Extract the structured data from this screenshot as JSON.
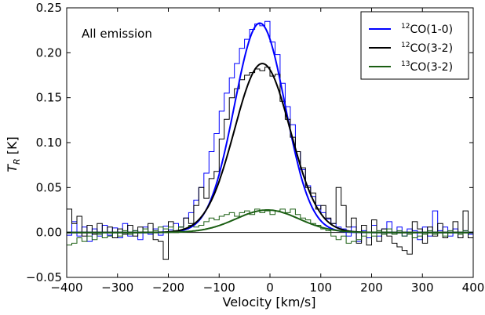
{
  "chart_data": {
    "type": "line",
    "annotation": "All emission",
    "xlabel": "Velocity [km/s]",
    "ylabel": "T_R [K]",
    "xlim": [
      -400,
      400
    ],
    "ylim": [
      -0.05,
      0.25
    ],
    "xticks": [
      -400,
      -300,
      -200,
      -100,
      0,
      100,
      200,
      300,
      400
    ],
    "xtick_labels": [
      "−400",
      "−300",
      "−200",
      "−100",
      "0",
      "100",
      "200",
      "300",
      "400"
    ],
    "yticks": [
      -0.05,
      0.0,
      0.05,
      0.1,
      0.15,
      0.2,
      0.25
    ],
    "ytick_labels": [
      "−0.05",
      "0.00",
      "0.05",
      "0.10",
      "0.15",
      "0.20",
      "0.25"
    ],
    "zero_line": 0.0,
    "grid": false,
    "legend_position": "top-right",
    "series": [
      {
        "name": "12CO(1-0)",
        "color": "#0000ff",
        "fit": {
          "amplitude": 0.233,
          "center": -20,
          "sigma": 50
        },
        "step_values": [
          {
            "x": -400,
            "y": -0.003
          },
          {
            "x": -390,
            "y": 0.012
          },
          {
            "x": -380,
            "y": -0.004
          },
          {
            "x": -370,
            "y": 0.006
          },
          {
            "x": -360,
            "y": -0.01
          },
          {
            "x": -350,
            "y": 0.004
          },
          {
            "x": -340,
            "y": -0.004
          },
          {
            "x": -330,
            "y": 0.008
          },
          {
            "x": -320,
            "y": -0.003
          },
          {
            "x": -310,
            "y": 0.005
          },
          {
            "x": -300,
            "y": -0.006
          },
          {
            "x": -290,
            "y": 0.01
          },
          {
            "x": -280,
            "y": -0.004
          },
          {
            "x": -270,
            "y": 0.002
          },
          {
            "x": -260,
            "y": -0.008
          },
          {
            "x": -250,
            "y": 0.006
          },
          {
            "x": -240,
            "y": -0.002
          },
          {
            "x": -230,
            "y": 0.004
          },
          {
            "x": -220,
            "y": -0.003
          },
          {
            "x": -210,
            "y": 0.007
          },
          {
            "x": -200,
            "y": 0.003
          },
          {
            "x": -190,
            "y": 0.01
          },
          {
            "x": -180,
            "y": 0.006
          },
          {
            "x": -170,
            "y": 0.016
          },
          {
            "x": -160,
            "y": 0.022
          },
          {
            "x": -150,
            "y": 0.036
          },
          {
            "x": -140,
            "y": 0.05
          },
          {
            "x": -130,
            "y": 0.066
          },
          {
            "x": -120,
            "y": 0.09
          },
          {
            "x": -110,
            "y": 0.11
          },
          {
            "x": -100,
            "y": 0.135
          },
          {
            "x": -90,
            "y": 0.155
          },
          {
            "x": -80,
            "y": 0.172
          },
          {
            "x": -70,
            "y": 0.188
          },
          {
            "x": -60,
            "y": 0.205
          },
          {
            "x": -50,
            "y": 0.215
          },
          {
            "x": -40,
            "y": 0.226
          },
          {
            "x": -30,
            "y": 0.232
          },
          {
            "x": -20,
            "y": 0.23
          },
          {
            "x": -10,
            "y": 0.235
          },
          {
            "x": 0,
            "y": 0.212
          },
          {
            "x": 10,
            "y": 0.198
          },
          {
            "x": 20,
            "y": 0.166
          },
          {
            "x": 30,
            "y": 0.14
          },
          {
            "x": 40,
            "y": 0.12
          },
          {
            "x": 50,
            "y": 0.09
          },
          {
            "x": 60,
            "y": 0.07
          },
          {
            "x": 70,
            "y": 0.052
          },
          {
            "x": 80,
            "y": 0.04
          },
          {
            "x": 90,
            "y": 0.03
          },
          {
            "x": 100,
            "y": 0.022
          },
          {
            "x": 110,
            "y": 0.015
          },
          {
            "x": 120,
            "y": 0.01
          },
          {
            "x": 130,
            "y": 0.006
          },
          {
            "x": 140,
            "y": 0.004
          },
          {
            "x": 150,
            "y": -0.004
          },
          {
            "x": 160,
            "y": 0.006
          },
          {
            "x": 170,
            "y": -0.01
          },
          {
            "x": 180,
            "y": 0.002
          },
          {
            "x": 190,
            "y": -0.006
          },
          {
            "x": 200,
            "y": 0.008
          },
          {
            "x": 210,
            "y": -0.004
          },
          {
            "x": 220,
            "y": 0.004
          },
          {
            "x": 230,
            "y": 0.012
          },
          {
            "x": 240,
            "y": -0.002
          },
          {
            "x": 250,
            "y": 0.006
          },
          {
            "x": 260,
            "y": -0.004
          },
          {
            "x": 270,
            "y": 0.004
          },
          {
            "x": 280,
            "y": 0.002
          },
          {
            "x": 290,
            "y": -0.008
          },
          {
            "x": 300,
            "y": 0.006
          },
          {
            "x": 310,
            "y": -0.004
          },
          {
            "x": 320,
            "y": 0.024
          },
          {
            "x": 330,
            "y": 0.002
          },
          {
            "x": 340,
            "y": 0.006
          },
          {
            "x": 350,
            "y": -0.004
          },
          {
            "x": 360,
            "y": 0.004
          },
          {
            "x": 370,
            "y": -0.006
          },
          {
            "x": 380,
            "y": 0.002
          },
          {
            "x": 390,
            "y": -0.002
          }
        ]
      },
      {
        "name": "12CO(3-2)",
        "color": "#000000",
        "fit": {
          "amplitude": 0.188,
          "center": -15,
          "sigma": 55
        },
        "step_values": [
          {
            "x": -400,
            "y": 0.026
          },
          {
            "x": -390,
            "y": 0.01
          },
          {
            "x": -380,
            "y": 0.018
          },
          {
            "x": -370,
            "y": -0.004
          },
          {
            "x": -360,
            "y": 0.008
          },
          {
            "x": -350,
            "y": -0.002
          },
          {
            "x": -340,
            "y": 0.01
          },
          {
            "x": -330,
            "y": 0.0
          },
          {
            "x": -320,
            "y": 0.006
          },
          {
            "x": -310,
            "y": -0.006
          },
          {
            "x": -300,
            "y": 0.004
          },
          {
            "x": -290,
            "y": -0.002
          },
          {
            "x": -280,
            "y": 0.008
          },
          {
            "x": -270,
            "y": -0.004
          },
          {
            "x": -260,
            "y": 0.006
          },
          {
            "x": -250,
            "y": 0.0
          },
          {
            "x": -240,
            "y": 0.01
          },
          {
            "x": -230,
            "y": -0.008
          },
          {
            "x": -220,
            "y": -0.01
          },
          {
            "x": -210,
            "y": -0.03
          },
          {
            "x": -200,
            "y": 0.012
          },
          {
            "x": -190,
            "y": 0.0
          },
          {
            "x": -180,
            "y": 0.006
          },
          {
            "x": -170,
            "y": 0.016
          },
          {
            "x": -160,
            "y": 0.01
          },
          {
            "x": -150,
            "y": 0.03
          },
          {
            "x": -140,
            "y": 0.05
          },
          {
            "x": -130,
            "y": 0.038
          },
          {
            "x": -120,
            "y": 0.06
          },
          {
            "x": -110,
            "y": 0.068
          },
          {
            "x": -100,
            "y": 0.104
          },
          {
            "x": -90,
            "y": 0.126
          },
          {
            "x": -80,
            "y": 0.15
          },
          {
            "x": -70,
            "y": 0.16
          },
          {
            "x": -60,
            "y": 0.17
          },
          {
            "x": -50,
            "y": 0.175
          },
          {
            "x": -40,
            "y": 0.178
          },
          {
            "x": -30,
            "y": 0.182
          },
          {
            "x": -20,
            "y": 0.18
          },
          {
            "x": -10,
            "y": 0.184
          },
          {
            "x": 0,
            "y": 0.174
          },
          {
            "x": 10,
            "y": 0.176
          },
          {
            "x": 20,
            "y": 0.146
          },
          {
            "x": 30,
            "y": 0.126
          },
          {
            "x": 40,
            "y": 0.106
          },
          {
            "x": 50,
            "y": 0.09
          },
          {
            "x": 60,
            "y": 0.072
          },
          {
            "x": 70,
            "y": 0.05
          },
          {
            "x": 80,
            "y": 0.044
          },
          {
            "x": 90,
            "y": 0.026
          },
          {
            "x": 100,
            "y": 0.03
          },
          {
            "x": 110,
            "y": 0.016
          },
          {
            "x": 120,
            "y": 0.01
          },
          {
            "x": 130,
            "y": 0.05
          },
          {
            "x": 140,
            "y": 0.03
          },
          {
            "x": 150,
            "y": 0.006
          },
          {
            "x": 160,
            "y": 0.016
          },
          {
            "x": 170,
            "y": -0.012
          },
          {
            "x": 180,
            "y": 0.008
          },
          {
            "x": 190,
            "y": -0.014
          },
          {
            "x": 200,
            "y": 0.014
          },
          {
            "x": 210,
            "y": -0.01
          },
          {
            "x": 220,
            "y": 0.004
          },
          {
            "x": 230,
            "y": -0.004
          },
          {
            "x": 240,
            "y": -0.012
          },
          {
            "x": 250,
            "y": -0.016
          },
          {
            "x": 260,
            "y": -0.02
          },
          {
            "x": 270,
            "y": -0.024
          },
          {
            "x": 280,
            "y": 0.012
          },
          {
            "x": 290,
            "y": 0.004
          },
          {
            "x": 300,
            "y": -0.012
          },
          {
            "x": 310,
            "y": 0.006
          },
          {
            "x": 320,
            "y": -0.004
          },
          {
            "x": 330,
            "y": 0.01
          },
          {
            "x": 340,
            "y": -0.006
          },
          {
            "x": 350,
            "y": 0.0
          },
          {
            "x": 360,
            "y": 0.012
          },
          {
            "x": 370,
            "y": -0.006
          },
          {
            "x": 380,
            "y": 0.024
          },
          {
            "x": 390,
            "y": -0.006
          }
        ]
      },
      {
        "name": "13CO(3-2)",
        "color": "#1a5e12",
        "fit": {
          "amplitude": 0.025,
          "center": -5,
          "sigma": 62
        },
        "step_values": [
          {
            "x": -400,
            "y": -0.014
          },
          {
            "x": -390,
            "y": -0.012
          },
          {
            "x": -380,
            "y": -0.006
          },
          {
            "x": -370,
            "y": -0.01
          },
          {
            "x": -360,
            "y": -0.004
          },
          {
            "x": -350,
            "y": -0.008
          },
          {
            "x": -340,
            "y": -0.002
          },
          {
            "x": -330,
            "y": -0.006
          },
          {
            "x": -320,
            "y": -0.004
          },
          {
            "x": -310,
            "y": 0.0
          },
          {
            "x": -300,
            "y": -0.004
          },
          {
            "x": -290,
            "y": 0.002
          },
          {
            "x": -280,
            "y": -0.002
          },
          {
            "x": -270,
            "y": 0.002
          },
          {
            "x": -260,
            "y": 0.0
          },
          {
            "x": -250,
            "y": 0.004
          },
          {
            "x": -240,
            "y": 0.0
          },
          {
            "x": -230,
            "y": 0.002
          },
          {
            "x": -220,
            "y": 0.006
          },
          {
            "x": -210,
            "y": 0.004
          },
          {
            "x": -200,
            "y": 0.006
          },
          {
            "x": -190,
            "y": 0.002
          },
          {
            "x": -180,
            "y": 0.006
          },
          {
            "x": -170,
            "y": 0.004
          },
          {
            "x": -160,
            "y": 0.008
          },
          {
            "x": -150,
            "y": 0.006
          },
          {
            "x": -140,
            "y": 0.008
          },
          {
            "x": -130,
            "y": 0.012
          },
          {
            "x": -120,
            "y": 0.016
          },
          {
            "x": -110,
            "y": 0.014
          },
          {
            "x": -100,
            "y": 0.018
          },
          {
            "x": -90,
            "y": 0.02
          },
          {
            "x": -80,
            "y": 0.022
          },
          {
            "x": -70,
            "y": 0.018
          },
          {
            "x": -60,
            "y": 0.022
          },
          {
            "x": -50,
            "y": 0.024
          },
          {
            "x": -40,
            "y": 0.02
          },
          {
            "x": -30,
            "y": 0.026
          },
          {
            "x": -20,
            "y": 0.022
          },
          {
            "x": -10,
            "y": 0.024
          },
          {
            "x": 0,
            "y": 0.02
          },
          {
            "x": 10,
            "y": 0.024
          },
          {
            "x": 20,
            "y": 0.026
          },
          {
            "x": 30,
            "y": 0.022
          },
          {
            "x": 40,
            "y": 0.026
          },
          {
            "x": 50,
            "y": 0.02
          },
          {
            "x": 60,
            "y": 0.016
          },
          {
            "x": 70,
            "y": 0.014
          },
          {
            "x": 80,
            "y": 0.01
          },
          {
            "x": 90,
            "y": 0.008
          },
          {
            "x": 100,
            "y": 0.004
          },
          {
            "x": 110,
            "y": 0.002
          },
          {
            "x": 120,
            "y": -0.004
          },
          {
            "x": 130,
            "y": -0.008
          },
          {
            "x": 140,
            "y": -0.004
          },
          {
            "x": 150,
            "y": -0.012
          },
          {
            "x": 160,
            "y": -0.01
          },
          {
            "x": 170,
            "y": -0.008
          },
          {
            "x": 180,
            "y": -0.004
          },
          {
            "x": 190,
            "y": 0.0
          },
          {
            "x": 200,
            "y": -0.004
          },
          {
            "x": 210,
            "y": 0.002
          },
          {
            "x": 220,
            "y": -0.002
          },
          {
            "x": 230,
            "y": 0.004
          },
          {
            "x": 240,
            "y": -0.002
          },
          {
            "x": 250,
            "y": 0.002
          },
          {
            "x": 260,
            "y": -0.004
          },
          {
            "x": 270,
            "y": -0.002
          },
          {
            "x": 280,
            "y": -0.006
          },
          {
            "x": 290,
            "y": -0.004
          },
          {
            "x": 300,
            "y": -0.002
          },
          {
            "x": 310,
            "y": 0.002
          },
          {
            "x": 320,
            "y": -0.002
          },
          {
            "x": 330,
            "y": 0.0
          },
          {
            "x": 340,
            "y": -0.004
          },
          {
            "x": 350,
            "y": 0.002
          },
          {
            "x": 360,
            "y": 0.0
          },
          {
            "x": 370,
            "y": -0.002
          },
          {
            "x": 380,
            "y": 0.002
          },
          {
            "x": 390,
            "y": 0.0
          }
        ]
      }
    ],
    "legend": [
      {
        "sup": "12",
        "label": "CO(1-0)",
        "color": "#0000ff"
      },
      {
        "sup": "12",
        "label": "CO(3-2)",
        "color": "#000000"
      },
      {
        "sup": "13",
        "label": "CO(3-2)",
        "color": "#1a5e12"
      }
    ]
  }
}
